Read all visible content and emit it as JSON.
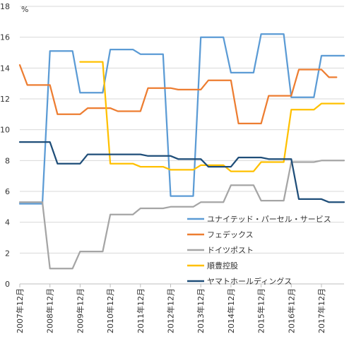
{
  "chart_data": {
    "type": "line",
    "unit_label": "%",
    "ylim": [
      0,
      18
    ],
    "yticks": [
      "0",
      "2",
      "4",
      "6",
      "8",
      "10",
      "12",
      "14",
      "16",
      "18"
    ],
    "x_tick_labels": [
      "2007年12月",
      "2008年12月",
      "2009年12月",
      "2010年12月",
      "2011年12月",
      "2012年12月",
      "2013年12月",
      "2014年12月",
      "2015年12月",
      "2016年12月",
      "2017年12月"
    ],
    "x_range": [
      2007.75,
      2018.5
    ],
    "grid": "horizontal",
    "legend_position": "lower-right",
    "series": [
      {
        "name": "ユナイテッド・パーセル・サービス",
        "color": "#5b9bd5",
        "points": [
          [
            2007.75,
            5.2
          ],
          [
            2008.5,
            5.2
          ],
          [
            2008.75,
            15.1
          ],
          [
            2009.5,
            15.1
          ],
          [
            2009.75,
            12.4
          ],
          [
            2010.5,
            12.4
          ],
          [
            2010.75,
            15.2
          ],
          [
            2011.5,
            15.2
          ],
          [
            2011.75,
            14.9
          ],
          [
            2012.5,
            14.9
          ],
          [
            2012.75,
            5.7
          ],
          [
            2013.5,
            5.7
          ],
          [
            2013.75,
            16.0
          ],
          [
            2014.5,
            16.0
          ],
          [
            2014.75,
            13.7
          ],
          [
            2015.5,
            13.7
          ],
          [
            2015.75,
            16.2
          ],
          [
            2016.5,
            16.2
          ],
          [
            2016.75,
            12.1
          ],
          [
            2017.5,
            12.1
          ],
          [
            2017.75,
            14.8
          ],
          [
            2018.5,
            14.8
          ]
        ]
      },
      {
        "name": "フェデックス",
        "color": "#ed7d31",
        "points": [
          [
            2007.75,
            14.2
          ],
          [
            2008.0,
            12.9
          ],
          [
            2008.75,
            12.9
          ],
          [
            2009.0,
            11.0
          ],
          [
            2009.75,
            11.0
          ],
          [
            2010.0,
            11.4
          ],
          [
            2010.75,
            11.4
          ],
          [
            2011.0,
            11.2
          ],
          [
            2011.75,
            11.2
          ],
          [
            2012.0,
            12.7
          ],
          [
            2012.75,
            12.7
          ],
          [
            2013.0,
            12.6
          ],
          [
            2013.75,
            12.6
          ],
          [
            2014.0,
            13.2
          ],
          [
            2014.75,
            13.2
          ],
          [
            2015.0,
            10.4
          ],
          [
            2015.75,
            10.4
          ],
          [
            2016.0,
            12.2
          ],
          [
            2016.75,
            12.2
          ],
          [
            2017.0,
            13.9
          ],
          [
            2017.75,
            13.9
          ],
          [
            2018.0,
            13.4
          ],
          [
            2018.25,
            13.4
          ]
        ]
      },
      {
        "name": "ドイツポスト",
        "color": "#a5a5a5",
        "points": [
          [
            2007.75,
            5.3
          ],
          [
            2008.5,
            5.3
          ],
          [
            2008.75,
            1.0
          ],
          [
            2009.5,
            1.0
          ],
          [
            2009.75,
            2.1
          ],
          [
            2010.5,
            2.1
          ],
          [
            2010.75,
            4.5
          ],
          [
            2011.5,
            4.5
          ],
          [
            2011.75,
            4.9
          ],
          [
            2012.5,
            4.9
          ],
          [
            2012.75,
            5.0
          ],
          [
            2013.5,
            5.0
          ],
          [
            2013.75,
            5.3
          ],
          [
            2014.5,
            5.3
          ],
          [
            2014.75,
            6.4
          ],
          [
            2015.5,
            6.4
          ],
          [
            2015.75,
            5.4
          ],
          [
            2016.5,
            5.4
          ],
          [
            2016.75,
            7.9
          ],
          [
            2017.5,
            7.9
          ],
          [
            2017.75,
            8.0
          ],
          [
            2018.5,
            8.0
          ]
        ]
      },
      {
        "name": "順豊控股",
        "color": "#ffc000",
        "points": [
          [
            2009.75,
            14.4
          ],
          [
            2010.5,
            14.4
          ],
          [
            2010.75,
            7.8
          ],
          [
            2011.5,
            7.8
          ],
          [
            2011.75,
            7.6
          ],
          [
            2012.5,
            7.6
          ],
          [
            2012.75,
            7.4
          ],
          [
            2013.5,
            7.4
          ],
          [
            2013.75,
            7.7
          ],
          [
            2014.5,
            7.7
          ],
          [
            2014.75,
            7.3
          ],
          [
            2015.5,
            7.3
          ],
          [
            2015.75,
            7.9
          ],
          [
            2016.5,
            7.9
          ],
          [
            2016.75,
            11.3
          ],
          [
            2017.5,
            11.3
          ],
          [
            2017.75,
            11.7
          ],
          [
            2018.5,
            11.7
          ]
        ]
      },
      {
        "name": "ヤマトホールディングス",
        "color": "#1f4e79",
        "points": [
          [
            2007.75,
            9.2
          ],
          [
            2008.0,
            9.2
          ],
          [
            2008.75,
            9.2
          ],
          [
            2009.0,
            7.8
          ],
          [
            2009.75,
            7.8
          ],
          [
            2010.0,
            8.4
          ],
          [
            2010.75,
            8.4
          ],
          [
            2011.0,
            8.4
          ],
          [
            2011.75,
            8.4
          ],
          [
            2012.0,
            8.3
          ],
          [
            2012.75,
            8.3
          ],
          [
            2013.0,
            8.1
          ],
          [
            2013.75,
            8.1
          ],
          [
            2014.0,
            7.6
          ],
          [
            2014.75,
            7.6
          ],
          [
            2015.0,
            8.2
          ],
          [
            2015.75,
            8.2
          ],
          [
            2016.0,
            8.1
          ],
          [
            2016.75,
            8.1
          ],
          [
            2017.0,
            5.5
          ],
          [
            2017.75,
            5.5
          ],
          [
            2018.0,
            5.3
          ],
          [
            2018.5,
            5.3
          ]
        ]
      }
    ]
  }
}
